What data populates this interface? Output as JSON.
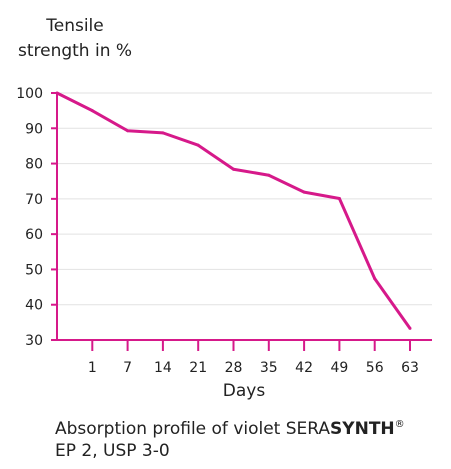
{
  "chart_data": {
    "type": "line",
    "ylabel_line1": "Tensile",
    "ylabel_line2": "strength in %",
    "xlabel": "Days",
    "x_ticks": [
      "1",
      "7",
      "14",
      "21",
      "28",
      "35",
      "42",
      "49",
      "56",
      "63"
    ],
    "y_ticks": [
      30,
      40,
      50,
      60,
      70,
      80,
      90,
      100
    ],
    "ylim": [
      30,
      100
    ],
    "grid": true,
    "line_color": "#d6198a",
    "points": [
      {
        "x": "0",
        "y": 100
      },
      {
        "x": "1",
        "y": 95
      },
      {
        "x": "7",
        "y": 89.3
      },
      {
        "x": "14",
        "y": 88.7
      },
      {
        "x": "21",
        "y": 85.2
      },
      {
        "x": "28",
        "y": 78.4
      },
      {
        "x": "35",
        "y": 76.7
      },
      {
        "x": "42",
        "y": 71.9
      },
      {
        "x": "49",
        "y": 70.1
      },
      {
        "x": "56",
        "y": 47.4
      },
      {
        "x": "63",
        "y": 33.3
      }
    ]
  },
  "caption": {
    "line1_prefix": "Absorption profile of violet SERA",
    "line1_bold": "SYNTH",
    "line1_mark": "®",
    "line2": "EP 2, USP 3-0"
  }
}
